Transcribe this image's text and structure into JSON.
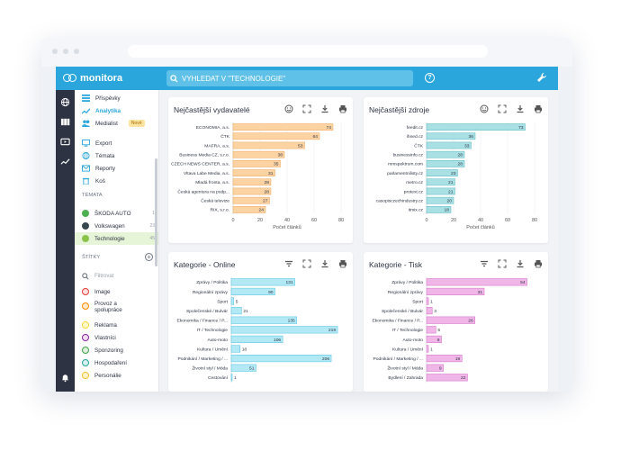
{
  "app": {
    "logo_text": "monitora",
    "search_placeholder": "VYHLEDAT V \"TECHNOLOGIE\"",
    "help_label": "?"
  },
  "sidebar": {
    "nav": [
      {
        "label": "Příspěvky",
        "icon": "list-icon",
        "active": false
      },
      {
        "label": "Analytika",
        "icon": "trend-icon",
        "active": true
      },
      {
        "label": "Medialist",
        "icon": "people-icon",
        "active": false,
        "badge": "Nové"
      }
    ],
    "actions": [
      {
        "label": "Export",
        "icon": "monitor-icon"
      },
      {
        "label": "Témata",
        "icon": "globe-icon"
      },
      {
        "label": "Reporty",
        "icon": "mail-icon"
      },
      {
        "label": "Koš",
        "icon": "trash-icon"
      }
    ],
    "topics_heading": "TÉMATA",
    "topics": [
      {
        "label": "ŠKODA AUTO",
        "count": "1",
        "color": "#4caf50"
      },
      {
        "label": "Volkswagen",
        "count": "23",
        "color": "#37474f"
      },
      {
        "label": "Technologie",
        "count": "45",
        "color": "#8bc34a"
      }
    ],
    "tags_heading": "ŠTÍTKY",
    "filter_placeholder": "Filtrovat",
    "tags": [
      {
        "label": "Image",
        "color": "#e53935"
      },
      {
        "label": "Provoz a spolupráce",
        "color": "#fb8c00"
      },
      {
        "label": "Reklama",
        "color": "#fdd835"
      },
      {
        "label": "Vlastníci",
        "color": "#8e24aa"
      },
      {
        "label": "Sponzoring",
        "color": "#43a047"
      },
      {
        "label": "Hospodaření",
        "color": "#26a69a"
      },
      {
        "label": "Personálie",
        "color": "#fbc02d"
      }
    ]
  },
  "panels": [
    {
      "title": "Nejčastější vydavatelé",
      "id": "publishers"
    },
    {
      "title": "Nejčastější zdroje",
      "id": "sources"
    },
    {
      "title": "Kategorie - Online",
      "id": "online"
    },
    {
      "title": "Kategorie - Tisk",
      "id": "print"
    }
  ],
  "chart_data": [
    {
      "type": "bar",
      "orientation": "horizontal",
      "title": "Nejčastější vydavatelé",
      "categories": [
        "ECONOMIA, a.s.",
        "ČTK",
        "MAFRA, a.s.",
        "Business Media CZ, s.r.o.",
        "CZECH NEWS CENTER, a.s.",
        "Vltava Labe Media, a.s.",
        "Mladá fronta, a.s.",
        "Česká agentura na podp...",
        "Česká televize",
        "RIX, s.r.o."
      ],
      "values": [
        74,
        64,
        53,
        38,
        35,
        31,
        28,
        28,
        27,
        24
      ],
      "xlabel": "Počet článků",
      "xlim": [
        0,
        80
      ],
      "ticks": [
        0,
        20,
        40,
        60,
        80
      ],
      "color": "#fcd3a3",
      "stroke": "#f0a458"
    },
    {
      "type": "bar",
      "orientation": "horizontal",
      "title": "Nejčastější zdroje",
      "categories": [
        "feedit.cz",
        "ihned.cz",
        "ČTK",
        "businessinfo.cz",
        "mmspektrum.com",
        "parlamentnilisty.cz",
        "metro.cz",
        "protext.cz",
        "casopisczechindustry.cz",
        "itmix.cz"
      ],
      "values": [
        73,
        36,
        33,
        28,
        28,
        23,
        21,
        21,
        20,
        18
      ],
      "xlabel": "Počet článků",
      "xlim": [
        0,
        80
      ],
      "ticks": [
        0,
        20,
        40,
        60,
        80
      ],
      "color": "#a8e0e4",
      "stroke": "#56b9c2"
    },
    {
      "type": "bar",
      "orientation": "horizontal",
      "title": "Kategorie - Online",
      "categories": [
        "Zprávy / Politika",
        "Regionální zprávy",
        "Sport",
        "Společenské / Bulvár",
        "Ekonomika / Finance / P...",
        "IT / Technologie",
        "Auto-moto",
        "Kultura / Umění",
        "Podnikání / Marketing / ...",
        "Životní styl / Móda",
        "Cestování"
      ],
      "values": [
        131,
        90,
        5,
        21,
        135,
        219,
        106,
        18,
        206,
        51,
        1
      ],
      "xlim": [
        0,
        230
      ],
      "color": "#b3e9f5",
      "stroke": "#4cc2e0"
    },
    {
      "type": "bar",
      "orientation": "horizontal",
      "title": "Kategorie - Tisk",
      "categories": [
        "Zprávy / Politika",
        "Regionální zprávy",
        "Sport",
        "Společenské / Bulvár",
        "Ekonomika / Finance / P...",
        "IT / Technologie",
        "Auto-moto",
        "Kultura / Umění",
        "Podnikání / Marketing / ...",
        "Životní styl / Móda",
        "Bydlení / Zahrada"
      ],
      "values": [
        54,
        31,
        1,
        3,
        26,
        5,
        8,
        1,
        19,
        9,
        22
      ],
      "xlim": [
        0,
        60
      ],
      "color": "#f1b6e8",
      "stroke": "#d26ac4"
    }
  ]
}
